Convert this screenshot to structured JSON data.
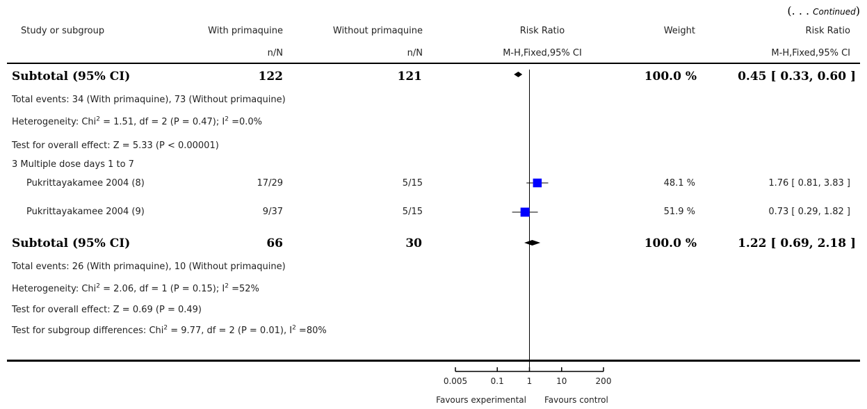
{
  "continued": {
    "dots": "(. . .",
    "label": "Continued",
    "close": ")"
  },
  "header": {
    "study": "Study or subgroup",
    "exp": "With primaquine",
    "ctrl": "Without primaquine",
    "rr": "Risk Ratio",
    "weight": "Weight",
    "rr2": "Risk Ratio",
    "exp_sub": "n/N",
    "ctrl_sub": "n/N",
    "rr_sub": "M-H,Fixed,95% CI",
    "rr2_sub": "M-H,Fixed,95% CI"
  },
  "subtotal1": {
    "label": "Subtotal (95% CI)",
    "exp": "122",
    "ctrl": "121",
    "weight": "100.0 %",
    "ci": "0.45 [ 0.33, 0.60 ]"
  },
  "stats1": {
    "events": "Total events: 34 (With primaquine), 73 (Without primaquine)",
    "het_a": "Heterogeneity: Chi",
    "het_sup1": "2",
    "het_b": " = 1.51, df = 2 (P = 0.47); I",
    "het_sup2": "2",
    "het_c": " =0.0%",
    "overall": "Test for overall effect: Z = 5.33 (P < 0.00001)"
  },
  "subgroup3": {
    "label": "3 Multiple dose days 1 to 7"
  },
  "studies": [
    {
      "name": "Pukrittayakamee 2004 (8)",
      "exp": "17/29",
      "ctrl": "5/15",
      "weight": "48.1 %",
      "ci": "1.76 [ 0.81, 3.83 ]"
    },
    {
      "name": "Pukrittayakamee 2004 (9)",
      "exp": "9/37",
      "ctrl": "5/15",
      "weight": "51.9 %",
      "ci": "0.73 [ 0.29, 1.82 ]"
    }
  ],
  "subtotal2": {
    "label": "Subtotal (95% CI)",
    "exp": "66",
    "ctrl": "30",
    "weight": "100.0 %",
    "ci": "1.22 [ 0.69, 2.18 ]"
  },
  "stats2": {
    "events": "Total events: 26 (With primaquine), 10 (Without primaquine)",
    "het_a": "Heterogeneity: Chi",
    "het_sup1": "2",
    "het_b": " = 2.06, df = 1 (P = 0.15); I",
    "het_sup2": "2",
    "het_c": " =52%",
    "overall": "Test for overall effect: Z = 0.69 (P = 0.49)"
  },
  "subgroup_diff": {
    "a": "Test for subgroup differences: Chi",
    "sup1": "2",
    "b": " = 9.77, df = 2 (P = 0.01), I",
    "sup2": "2",
    "c": " =80%"
  },
  "axis": {
    "ticks": [
      "0.005",
      "0.1",
      "1",
      "10",
      "200"
    ],
    "favours_left": "Favours experimental",
    "favours_right": "Favours control"
  },
  "chart_data": {
    "type": "forest",
    "scale": "log",
    "xlim": [
      0.005,
      200
    ],
    "null_value": 1,
    "marker_color": "#0000ff",
    "studies": [
      {
        "name": "Pukrittayakamee 2004 (8)",
        "rr": 1.76,
        "lower": 0.81,
        "upper": 3.83,
        "weight": 48.1
      },
      {
        "name": "Pukrittayakamee 2004 (9)",
        "rr": 0.73,
        "lower": 0.29,
        "upper": 1.82,
        "weight": 51.9
      }
    ],
    "subtotals": [
      {
        "label": "Subtotal (95% CI)",
        "rr": 0.45,
        "lower": 0.33,
        "upper": 0.6
      },
      {
        "label": "Subtotal (95% CI)",
        "rr": 1.22,
        "lower": 0.69,
        "upper": 2.18
      }
    ]
  }
}
